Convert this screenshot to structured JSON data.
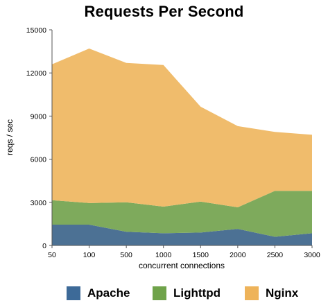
{
  "chart_data": {
    "type": "area",
    "stacked": true,
    "title": "Requests Per Second",
    "xlabel": "concurrent connections",
    "ylabel": "reqs / sec",
    "categories": [
      "50",
      "100",
      "500",
      "1000",
      "1500",
      "2000",
      "2500",
      "3000"
    ],
    "ylim": [
      0,
      15000
    ],
    "yticks": [
      "0",
      "3000",
      "6000",
      "9000",
      "12000",
      "15000"
    ],
    "grid": false,
    "legend_position": "bottom",
    "series": [
      {
        "name": "Apache",
        "color": "#4c7194",
        "values": [
          1450,
          1450,
          950,
          850,
          900,
          1150,
          600,
          850
        ]
      },
      {
        "name": "Lighttpd",
        "color": "#7eaa5c",
        "values": [
          1700,
          1500,
          2050,
          1850,
          2150,
          1500,
          3200,
          2950
        ]
      },
      {
        "name": "Nginx",
        "color": "#f0bc6c",
        "values": [
          9450,
          10750,
          9700,
          9850,
          6600,
          5650,
          4100,
          3900
        ]
      }
    ]
  },
  "legend": {
    "items": [
      {
        "label": "Apache",
        "color": "#3d6a98"
      },
      {
        "label": "Lighttpd",
        "color": "#6fa34a"
      },
      {
        "label": "Nginx",
        "color": "#eeb35a"
      }
    ]
  }
}
